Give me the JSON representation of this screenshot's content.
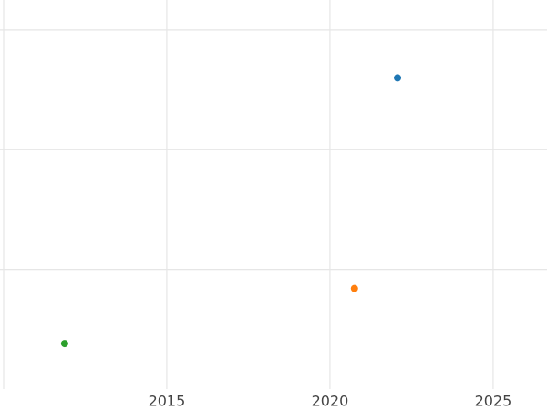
{
  "chart_data": {
    "type": "scatter",
    "series": [
      {
        "color": "#1f77b4",
        "x": [
          2022.07
        ],
        "values": [
          2.6
        ]
      },
      {
        "color": "#ff7f0e",
        "x": [
          2020.75
        ],
        "values": [
          0.84
        ]
      },
      {
        "color": "#2ca02c",
        "x": [
          2011.87
        ],
        "values": [
          0.38
        ]
      }
    ],
    "xlim": [
      2009.89,
      2026.65
    ],
    "xticks": [
      2015,
      2020,
      2025
    ],
    "ylim": [
      0,
      3.25
    ],
    "yticks": [
      1,
      2,
      3
    ],
    "grid": true
  }
}
